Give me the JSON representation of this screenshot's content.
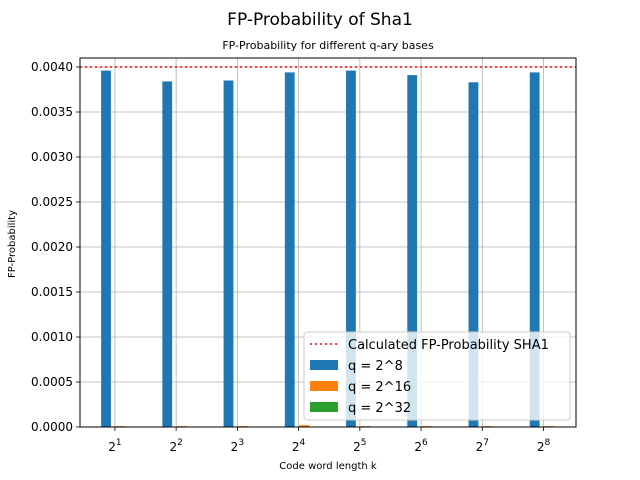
{
  "chart_data": {
    "type": "bar",
    "suptitle": "FP-Probability of Sha1",
    "title": "FP-Probability for different q-ary bases",
    "xlabel": "Code word length k",
    "ylabel": "FP-Probability",
    "categories": [
      {
        "base": "2",
        "exp": "1"
      },
      {
        "base": "2",
        "exp": "2"
      },
      {
        "base": "2",
        "exp": "3"
      },
      {
        "base": "2",
        "exp": "4"
      },
      {
        "base": "2",
        "exp": "5"
      },
      {
        "base": "2",
        "exp": "6"
      },
      {
        "base": "2",
        "exp": "7"
      },
      {
        "base": "2",
        "exp": "8"
      }
    ],
    "series": [
      {
        "name": "q = 2^8",
        "color": "#1f77b4",
        "values": [
          0.00396,
          0.00384,
          0.00385,
          0.00394,
          0.00396,
          0.00391,
          0.00383,
          0.00394
        ]
      },
      {
        "name": "q = 2^16",
        "color": "#ff7f0e",
        "values": [
          1e-05,
          1e-05,
          1e-05,
          2e-05,
          1e-05,
          1e-05,
          1e-05,
          1e-05
        ]
      },
      {
        "name": "q = 2^32",
        "color": "#2ca02c",
        "values": [
          0,
          0,
          0,
          0,
          0,
          0,
          0,
          0
        ]
      }
    ],
    "reference_line": {
      "name": "Calculated FP-Probability SHA1",
      "value": 0.004,
      "color": "#ff0000",
      "style": "dotted"
    },
    "ylim": [
      0,
      0.0041
    ],
    "yticks": [
      "0.0000",
      "0.0005",
      "0.0010",
      "0.0015",
      "0.0020",
      "0.0025",
      "0.0030",
      "0.0035",
      "0.0040"
    ],
    "grid": true,
    "legend_position": "lower-right"
  }
}
